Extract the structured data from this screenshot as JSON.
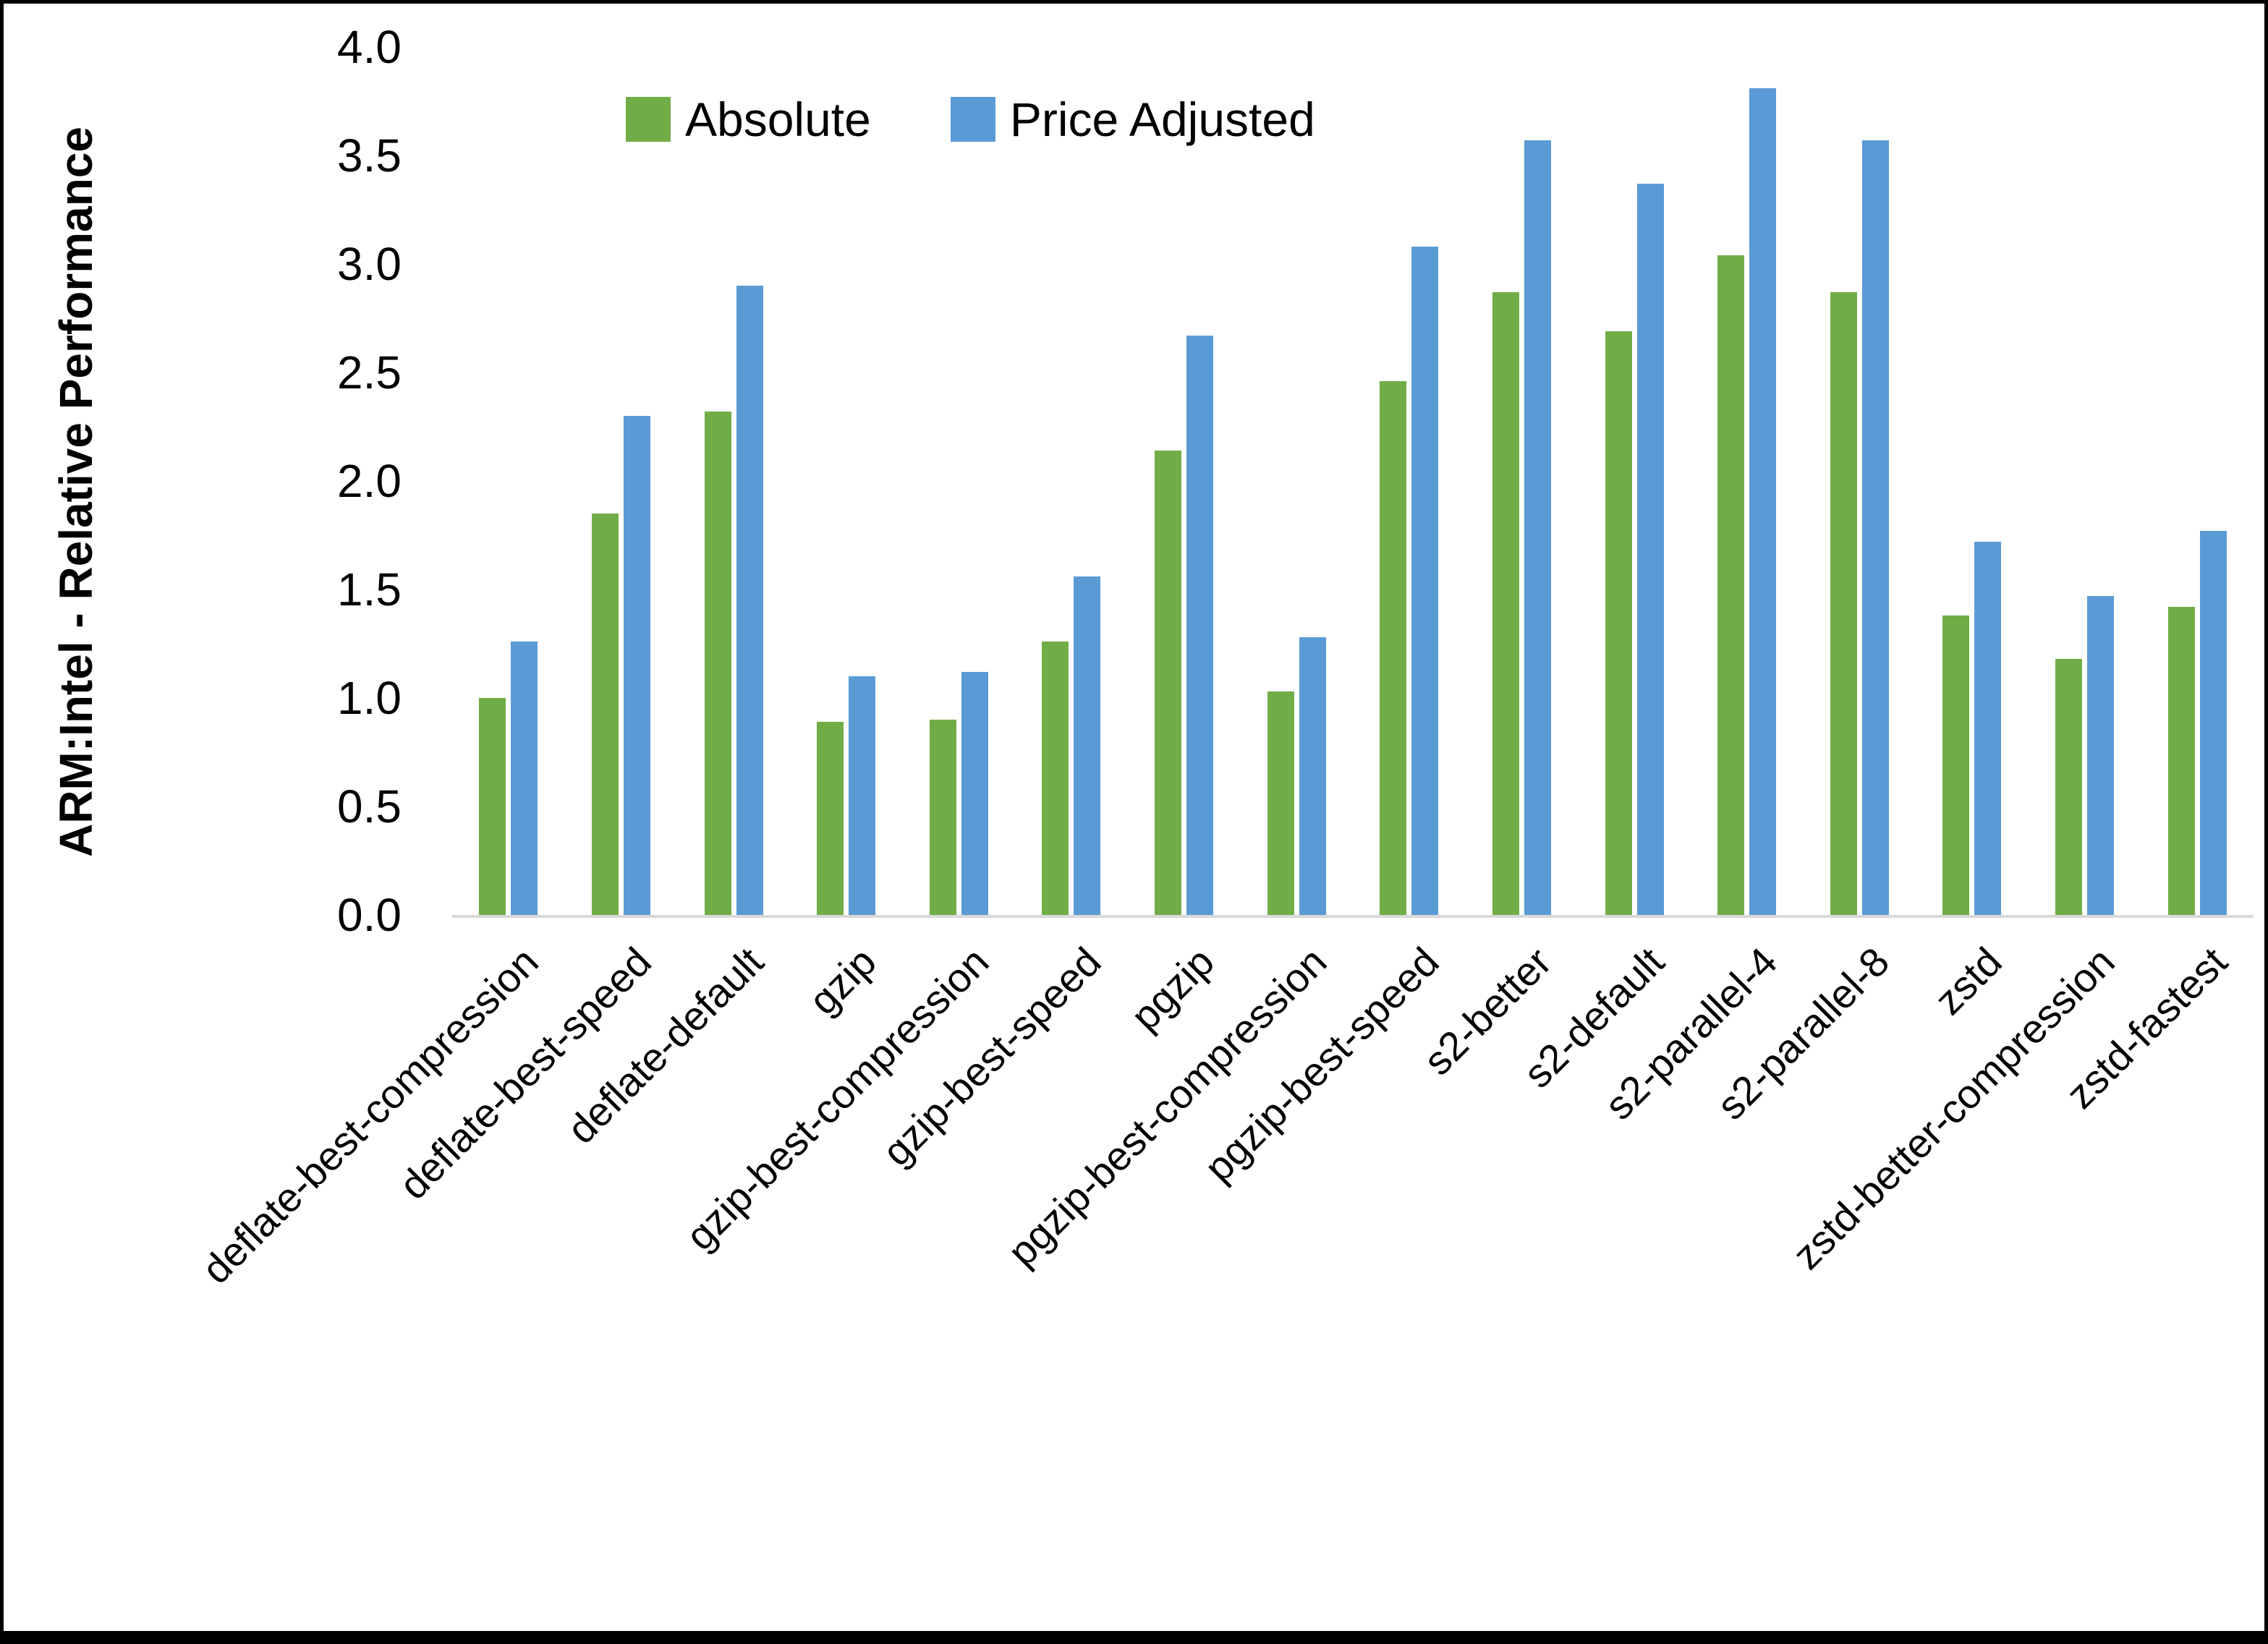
{
  "colors": {
    "absolute": "#70AD47",
    "price_adjusted": "#5B9BD5",
    "axis_line": "#D9D9D9",
    "text": "#000000",
    "frame": "#000000",
    "background": "#FFFFFF"
  },
  "y_axis": {
    "title": "ARM:Intel - Relative Performance",
    "ticks": [
      "4.0",
      "3.5",
      "3.0",
      "2.5",
      "2.0",
      "1.5",
      "1.0",
      "0.5",
      "0.0"
    ],
    "min": 0.0,
    "max": 4.0,
    "step": 0.5
  },
  "legend": {
    "items": [
      {
        "label": "Absolute",
        "color": "#70AD47"
      },
      {
        "label": "Price Adjusted",
        "color": "#5B9BD5"
      }
    ],
    "position": "top-center"
  },
  "chart_data": {
    "type": "bar",
    "title": "",
    "xlabel": "",
    "ylabel": "ARM:Intel - Relative Performance",
    "ylim": [
      0.0,
      4.0
    ],
    "grid": false,
    "legend_position": "top",
    "categories": [
      "deflate-best-compression",
      "deflate-best-speed",
      "deflate-default",
      "gzip",
      "gzip-best-compression",
      "gzip-best-speed",
      "pgzip",
      "pgzip-best-compression",
      "pgzip-best-speed",
      "s2-better",
      "s2-default",
      "s2-parallel-4",
      "s2-parallel-8",
      "zstd",
      "zstd-better-compression",
      "zstd-fastest"
    ],
    "series": [
      {
        "name": "Absolute",
        "color": "#70AD47",
        "values": [
          1.0,
          1.85,
          2.32,
          0.89,
          0.9,
          1.26,
          2.14,
          1.03,
          2.46,
          2.87,
          2.69,
          3.04,
          2.87,
          1.38,
          1.18,
          1.42
        ]
      },
      {
        "name": "Price Adjusted",
        "color": "#5B9BD5",
        "values": [
          1.26,
          2.3,
          2.9,
          1.1,
          1.12,
          1.56,
          2.67,
          1.28,
          3.08,
          3.57,
          3.37,
          3.81,
          3.57,
          1.72,
          1.47,
          1.77
        ]
      }
    ]
  }
}
